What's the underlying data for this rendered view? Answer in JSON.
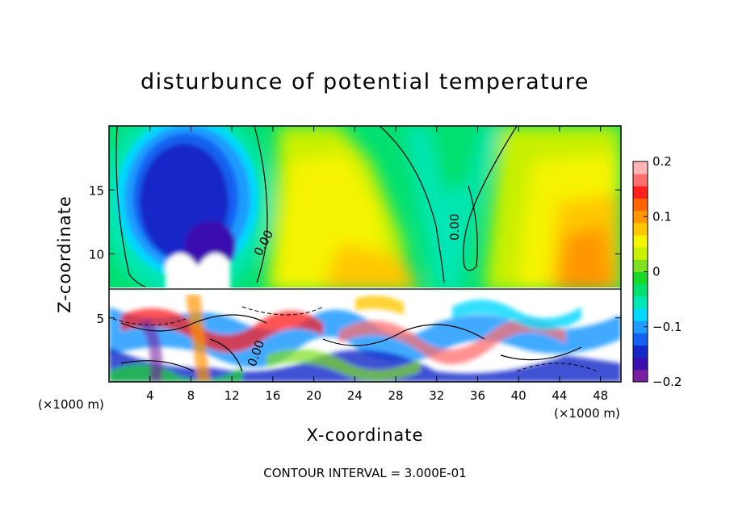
{
  "chart_data": {
    "type": "heatmap",
    "title": "disturbunce of potential temperature",
    "xlabel": "X-coordinate",
    "ylabel": "Z-coordinate",
    "x_unit": "(×1000 m)",
    "footnote": "CONTOUR INTERVAL = 3.000E-01",
    "x_ticks": [
      4,
      8,
      12,
      16,
      20,
      24,
      28,
      32,
      36,
      40,
      44,
      48
    ],
    "y_ticks": [
      5,
      10,
      15
    ],
    "xlim": [
      0,
      50
    ],
    "ylim": [
      0,
      20
    ],
    "colorbar": {
      "min": -0.2,
      "max": 0.2,
      "tick_values": [
        0.2,
        0.1,
        0,
        -0.1,
        -0.2
      ],
      "tick_labels": [
        "0.2",
        "0.1",
        "0",
        "−0.1",
        "−0.2"
      ],
      "colors": [
        "#7b1fa2",
        "#3b0fb0",
        "#1428c8",
        "#1460f0",
        "#1e9bff",
        "#00d8ff",
        "#00e6b4",
        "#00e070",
        "#18d82a",
        "#7ee01e",
        "#c8f000",
        "#f6f400",
        "#ffc800",
        "#ff9600",
        "#ff6400",
        "#ff1e1e",
        "#ff6e6e",
        "#ffb4b4"
      ]
    },
    "contour_labels": [
      "0.00",
      "0.00",
      "0.00"
    ],
    "regions": [
      {
        "name": "background",
        "value": 0.02,
        "color": "#00e070"
      },
      {
        "name": "cold-plume-upper",
        "value": -0.13,
        "color": "#1428c8",
        "x_range": [
          3,
          12
        ],
        "z_range": [
          8,
          19.5
        ]
      },
      {
        "name": "warm-band-center",
        "value": 0.06,
        "color": "#f6f400",
        "x_range": [
          17,
          29
        ],
        "z_range": [
          7.5,
          20
        ]
      },
      {
        "name": "warm-band-right",
        "value": 0.07,
        "color": "#ffc800",
        "x_range": [
          39,
          50
        ],
        "z_range": [
          7.5,
          18
        ]
      },
      {
        "name": "turbulent-layer",
        "value": 0.0,
        "color": "#ffffff",
        "x_range": [
          0,
          50
        ],
        "z_range": [
          0,
          7.3
        ]
      }
    ]
  }
}
